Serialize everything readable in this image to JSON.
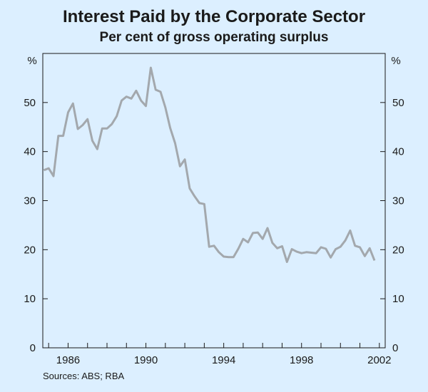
{
  "chart_data": {
    "type": "line",
    "title": "Interest Paid by the Corporate Sector",
    "subtitle": "Per cent of gross operating surplus",
    "ylabel": "%",
    "ylim": [
      0,
      60
    ],
    "yticks": [
      0,
      10,
      20,
      30,
      40,
      50
    ],
    "xlim": [
      1984.7,
      2002.3
    ],
    "xticks": [
      1986,
      1990,
      1994,
      1998,
      2002
    ],
    "grid": false,
    "line_color": "#a3a8ad",
    "series": [
      {
        "x": [
          1984.75,
          1985.0,
          1985.25,
          1985.5,
          1985.75,
          1986.0,
          1986.25,
          1986.5,
          1986.75,
          1987.0,
          1987.25,
          1987.5,
          1987.75,
          1988.0,
          1988.25,
          1988.5,
          1988.75,
          1989.0,
          1989.25,
          1989.5,
          1989.75,
          1990.0,
          1990.25,
          1990.5,
          1990.75,
          1991.0,
          1991.25,
          1991.5,
          1991.75,
          1992.0,
          1992.25,
          1992.5,
          1992.75,
          1993.0,
          1993.25,
          1993.5,
          1993.75,
          1994.0,
          1994.25,
          1994.5,
          1994.75,
          1995.0,
          1995.25,
          1995.5,
          1995.75,
          1996.0,
          1996.25,
          1996.5,
          1996.75,
          1997.0,
          1997.25,
          1997.5,
          1997.75,
          1998.0,
          1998.25,
          1998.5,
          1998.75,
          1999.0,
          1999.25,
          1999.5,
          1999.75,
          2000.0,
          2000.25,
          2000.5,
          2000.75,
          2001.0,
          2001.25,
          2001.5,
          2001.75
        ],
        "values": [
          36.2,
          36.6,
          35.0,
          43.2,
          43.2,
          48.0,
          49.8,
          44.6,
          45.4,
          46.6,
          42.2,
          40.5,
          44.7,
          44.7,
          45.6,
          47.2,
          50.4,
          51.2,
          50.8,
          52.4,
          50.4,
          49.3,
          57.1,
          52.6,
          52.2,
          49.0,
          44.8,
          41.7,
          37.0,
          38.4,
          32.5,
          30.9,
          29.5,
          29.3,
          20.6,
          20.8,
          19.5,
          18.6,
          18.5,
          18.5,
          20.2,
          22.2,
          21.5,
          23.4,
          23.5,
          22.2,
          24.4,
          21.4,
          20.3,
          20.7,
          17.5,
          20.1,
          19.6,
          19.3,
          19.5,
          19.4,
          19.3,
          20.5,
          20.2,
          18.4,
          20.1,
          20.6,
          21.9,
          23.9,
          20.8,
          20.5,
          18.7,
          20.3,
          17.8
        ]
      }
    ]
  },
  "footer": {
    "sources": "Sources: ABS; RBA"
  }
}
